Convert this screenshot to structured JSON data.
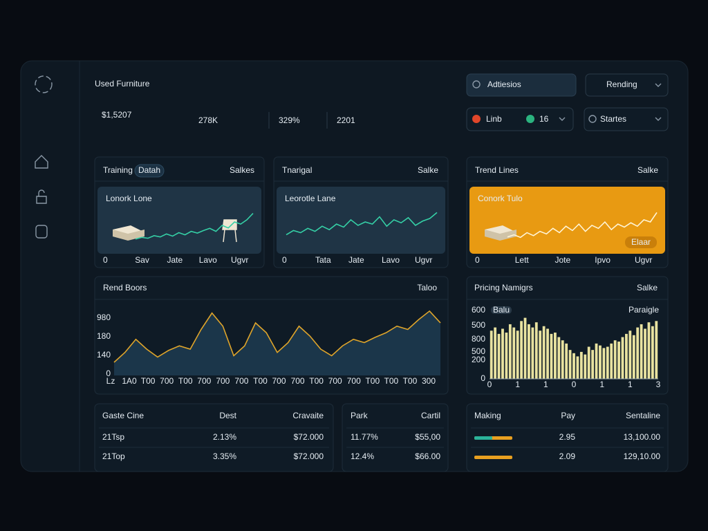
{
  "header": {
    "title": "Used Furniture",
    "revenue": "$1,5207",
    "stats": [
      "278K",
      "329%",
      "2201"
    ]
  },
  "controls": {
    "search": "Adtiesios",
    "sort": "Rending",
    "filter_a": "Linb",
    "filter_b": "16",
    "status": "Startes"
  },
  "cards": [
    {
      "title": "Training",
      "badge": "Datah",
      "link": "Salkes",
      "chart": {
        "type": "line",
        "label": "Lonork Lone",
        "color": "#35d0a6",
        "ylim": [
          0,
          100
        ],
        "values": [
          10,
          14,
          12,
          18,
          15,
          22,
          17,
          25,
          20,
          28,
          24,
          30,
          35,
          28,
          42,
          36,
          50,
          45,
          55,
          70
        ],
        "x_labels": [
          "0",
          "Sav",
          "Jate",
          "Lavo",
          "Ugvr"
        ]
      }
    },
    {
      "title": "Tnarigal",
      "link": "Salke",
      "chart": {
        "type": "line",
        "label": "Leorotle Lane",
        "color": "#35d0a6",
        "ylim": [
          0,
          100
        ],
        "values": [
          20,
          30,
          25,
          35,
          28,
          40,
          32,
          45,
          38,
          55,
          42,
          50,
          45,
          62,
          40,
          55,
          48,
          60,
          42,
          52,
          58,
          72
        ],
        "x_labels": [
          "0",
          "Tata",
          "Jate",
          "Lavo",
          "Ugvr"
        ]
      }
    },
    {
      "title": "Trend Lines",
      "link": "Salke",
      "chart": {
        "type": "line",
        "label": "Conork Tulo",
        "button": "Elaar",
        "color": "#fff4d6",
        "ylim": [
          0,
          100
        ],
        "values": [
          15,
          20,
          14,
          25,
          18,
          28,
          22,
          35,
          25,
          40,
          30,
          45,
          28,
          42,
          35,
          50,
          32,
          45,
          38,
          48,
          40,
          55,
          50,
          72
        ],
        "x_labels": [
          "0",
          "Lett",
          "Jote",
          "Ipvo",
          "Ugvr"
        ]
      }
    }
  ],
  "area_card": {
    "title": "Rend Boors",
    "link": "Taloo",
    "chart": {
      "type": "area",
      "color": "#e0a52a",
      "ylim": [
        0,
        100
      ],
      "values": [
        20,
        35,
        55,
        40,
        28,
        38,
        45,
        40,
        70,
        95,
        75,
        30,
        45,
        80,
        65,
        35,
        50,
        75,
        60,
        40,
        30,
        45,
        55,
        50,
        58,
        65,
        75,
        70,
        85,
        98,
        80
      ],
      "y_labels": [
        "980",
        "180",
        "140",
        "0"
      ],
      "x_labels": [
        "Lz",
        "1A0",
        "T00",
        "700",
        "T00",
        "700",
        "700",
        "700",
        "T00",
        "700",
        "700",
        "T00",
        "700",
        "700",
        "T00",
        "T00",
        "T00",
        "300"
      ]
    }
  },
  "bar_card": {
    "title": "Pricing Namigrs",
    "link": "Salke",
    "chart": {
      "type": "bar",
      "badge": "Balu",
      "label": "Paraigle",
      "color": "#e8e2a0",
      "ylim": [
        0,
        100
      ],
      "values": [
        75,
        80,
        70,
        78,
        72,
        85,
        80,
        75,
        90,
        95,
        85,
        80,
        88,
        75,
        82,
        78,
        70,
        72,
        65,
        60,
        55,
        45,
        40,
        35,
        42,
        38,
        50,
        45,
        55,
        52,
        48,
        50,
        55,
        60,
        58,
        65,
        70,
        75,
        68,
        80,
        85,
        78,
        88,
        82,
        90
      ],
      "y_labels": [
        "600",
        "500",
        "800",
        "500",
        "200",
        "0"
      ],
      "x_labels": [
        "0",
        "1",
        "1",
        "0",
        "1",
        "1",
        "3"
      ]
    }
  },
  "tables": [
    {
      "header": [
        "Gaste Cine",
        "Dest",
        "Cravaite"
      ],
      "rows": [
        [
          "21Tsp",
          "2.13%",
          "$72.000"
        ],
        [
          "21Top",
          "3.35%",
          "$72.000"
        ]
      ]
    },
    {
      "header": [
        "Park",
        "Cartil"
      ],
      "rows": [
        [
          "11.77%",
          "$55,00"
        ],
        [
          "12.4%",
          "$66.00"
        ]
      ]
    },
    {
      "header": [
        "Making",
        "Pay",
        "Sentaline"
      ],
      "rows": [
        [
          "2.95",
          "13,100.00"
        ],
        [
          "2.09",
          "129,10.00"
        ]
      ]
    }
  ]
}
